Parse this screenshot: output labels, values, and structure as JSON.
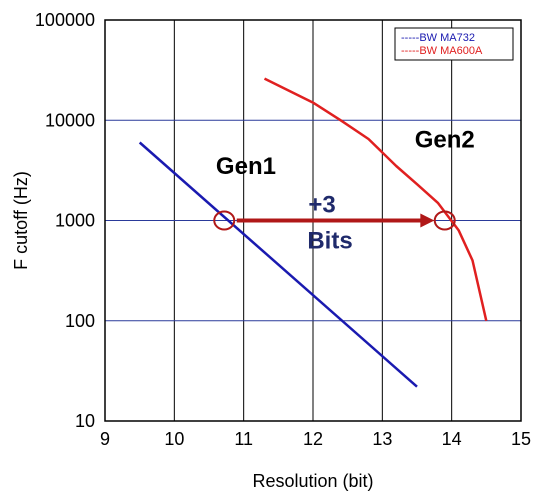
{
  "chart_data": {
    "type": "line",
    "xlabel": "Resolution (bit)",
    "ylabel": "F cutoff (Hz)",
    "xlim": [
      9,
      15
    ],
    "ylim": [
      10,
      100000
    ],
    "yscale": "log",
    "grid": true,
    "x_ticks": [
      "9",
      "10",
      "11",
      "12",
      "13",
      "14",
      "15"
    ],
    "y_ticks": [
      "10",
      "100",
      "1000",
      "10000",
      "100000"
    ],
    "legend_position": "top-right",
    "series": [
      {
        "name": "BW MA732",
        "color": "#1a1ab0",
        "legend_label": "-----BW MA732",
        "points": [
          [
            9.5,
            6000
          ],
          [
            13.5,
            22
          ]
        ]
      },
      {
        "name": "BW MA600A",
        "color": "#e02020",
        "legend_label": "-----BW MA600A",
        "points": [
          [
            11.3,
            26000
          ],
          [
            12.0,
            15000
          ],
          [
            12.4,
            10000
          ],
          [
            12.8,
            6500
          ],
          [
            13.2,
            3500
          ],
          [
            13.5,
            2300
          ],
          [
            13.8,
            1500
          ],
          [
            14.1,
            800
          ],
          [
            14.3,
            400
          ],
          [
            14.5,
            100
          ]
        ]
      }
    ],
    "annotations": {
      "gen1": "Gen1",
      "gen2": "Gen2",
      "arrow_line1": "+3",
      "arrow_line2": "Bits",
      "gen1_label_at": [
        10.6,
        2900
      ],
      "gen2_label_at": [
        13.9,
        1700
      ],
      "circle1_at": [
        10.72,
        1000
      ],
      "circle2_at": [
        13.9,
        1000
      ],
      "arrow_from": [
        10.9,
        1000
      ],
      "arrow_to": [
        13.75,
        1000
      ]
    }
  },
  "colors": {
    "blue_line": "#1a1ab0",
    "red_line": "#e02020",
    "dark_red": "#b01818",
    "navy_text": "#1f2a6b",
    "grid_dark": "#000000",
    "grid_blue": "#2a3a9a"
  }
}
